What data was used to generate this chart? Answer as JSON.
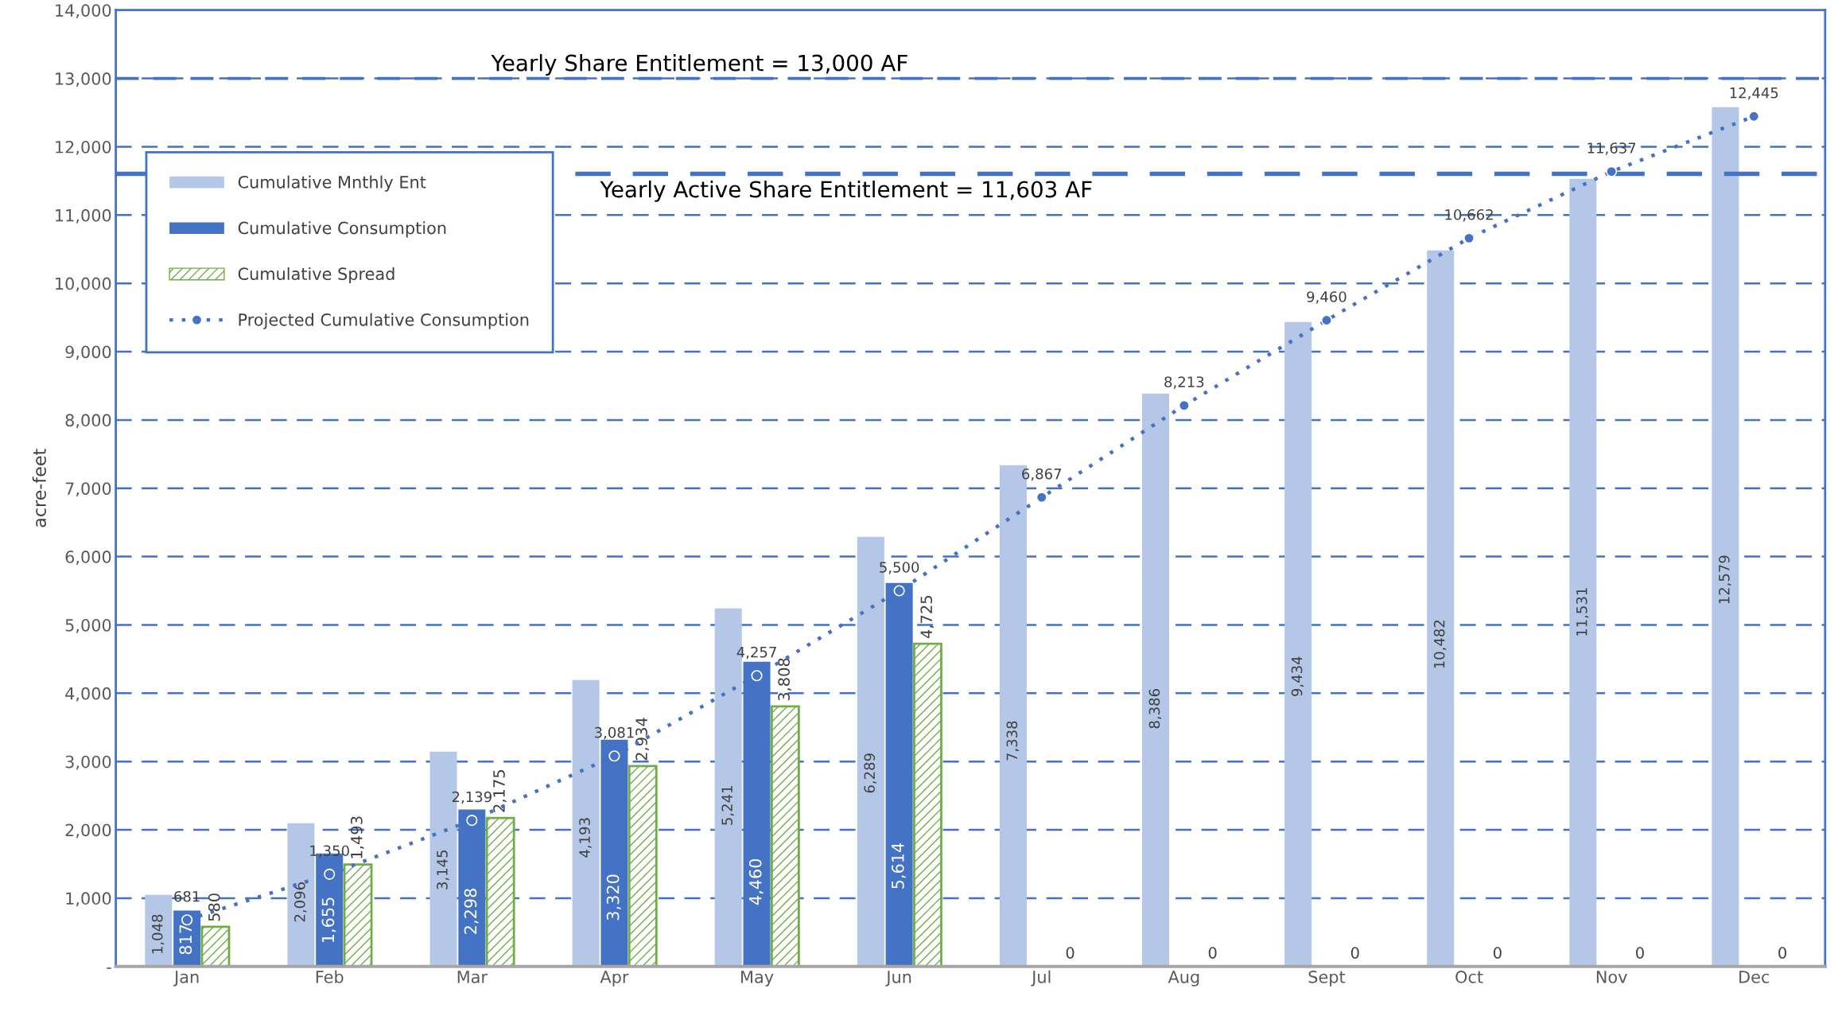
{
  "chart_data": {
    "type": "bar",
    "ylabel": "acre-feet",
    "categories": [
      "Jan",
      "Feb",
      "Mar",
      "Apr",
      "May",
      "Jun",
      "Jul",
      "Aug",
      "Sept",
      "Oct",
      "Nov",
      "Dec"
    ],
    "series": [
      {
        "name": "Cumulative Mnthly Ent",
        "color": "#b4c7e7",
        "values": [
          1048,
          2096,
          3145,
          4193,
          5241,
          6289,
          7338,
          8386,
          9434,
          10482,
          11531,
          12579
        ],
        "value_labels": [
          "1,048",
          "2,096",
          "3,145",
          "4,193",
          "5,241",
          "6,289",
          "7,338",
          "8,386",
          "9,434",
          "10,482",
          "11,531",
          "12,579"
        ]
      },
      {
        "name": "Cumulative Consumption",
        "color": "#4472c4",
        "values": [
          817,
          1655,
          2298,
          3320,
          4460,
          5614,
          null,
          null,
          null,
          null,
          null,
          null
        ],
        "value_labels": [
          "817",
          "1,655",
          "2,298",
          "3,320",
          "4,460",
          "5,614",
          null,
          null,
          null,
          null,
          null,
          null
        ]
      },
      {
        "name": "Cumulative Spread",
        "color": "#70ad47",
        "values": [
          580,
          1493,
          2175,
          2934,
          3808,
          4725,
          0,
          0,
          0,
          0,
          0,
          0
        ],
        "value_labels": [
          "580",
          "1,493",
          "2,175",
          "2,934",
          "3,808",
          "4,725",
          "0",
          "0",
          "0",
          "0",
          "0",
          "0"
        ]
      },
      {
        "name": "Projected Cumulative Consumption",
        "type": "line",
        "color": "#4472c4",
        "marker": "circle",
        "line_style": "dotted",
        "values": [
          681,
          1350,
          2139,
          3081,
          4257,
          5500,
          6867,
          8213,
          9460,
          10662,
          11637,
          12445
        ],
        "value_labels": [
          "681",
          "1,350",
          "2,139",
          "3,081",
          "4,257",
          "5,500",
          "6,867",
          "8,213",
          "9,460",
          "10,662",
          "11,637",
          "12,445"
        ]
      }
    ],
    "ylim": [
      0,
      14000
    ],
    "yticks": [
      {
        "value": 0,
        "label": "-"
      },
      {
        "value": 1000,
        "label": "1,000"
      },
      {
        "value": 2000,
        "label": "2,000"
      },
      {
        "value": 3000,
        "label": "3,000"
      },
      {
        "value": 4000,
        "label": "4,000"
      },
      {
        "value": 5000,
        "label": "5,000"
      },
      {
        "value": 6000,
        "label": "6,000"
      },
      {
        "value": 7000,
        "label": "7,000"
      },
      {
        "value": 8000,
        "label": "8,000"
      },
      {
        "value": 9000,
        "label": "9,000"
      },
      {
        "value": 10000,
        "label": "10,000"
      },
      {
        "value": 11000,
        "label": "11,000"
      },
      {
        "value": 12000,
        "label": "12,000"
      },
      {
        "value": 13000,
        "label": "13,000"
      },
      {
        "value": 14000,
        "label": "14,000"
      }
    ],
    "ref_lines": [
      {
        "axis": "y",
        "value": 13000,
        "label": "Yearly Share Entitlement = 13,000 AF",
        "color": "#4472c4",
        "line_style": "dashed"
      },
      {
        "axis": "y",
        "value": 11603,
        "label": "Yearly Active Share Entitlement = 11,603 AF",
        "color": "#4472c4",
        "line_style": "dashed"
      }
    ],
    "grid": "y",
    "legend": "top left"
  }
}
